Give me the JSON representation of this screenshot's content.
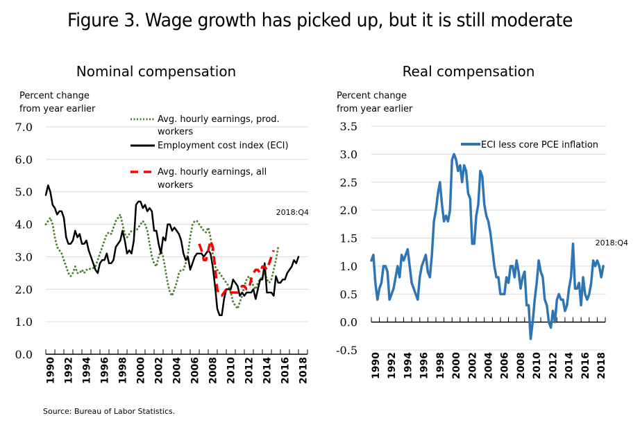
{
  "figure_title": "Figure 3. Wage growth has picked up, but it is still moderate",
  "source": "Source: Bureau of Labor Statistics.",
  "chart_data": [
    {
      "type": "line",
      "title": "Nominal compensation",
      "ylabel_lines": [
        "Percent change",
        "from year earlier"
      ],
      "xlabel": "",
      "xlim": [
        1990,
        2019
      ],
      "ylim": [
        0,
        7
      ],
      "y_ticks": [
        "0.0",
        "1.0",
        "2.0",
        "3.0",
        "4.0",
        "5.0",
        "6.0",
        "7.0"
      ],
      "y_tick_values": [
        0,
        1,
        2,
        3,
        4,
        5,
        6,
        7
      ],
      "x_ticks": [
        "1990",
        "1992",
        "1994",
        "1996",
        "1998",
        "2000",
        "2002",
        "2004",
        "2006",
        "2008",
        "2010",
        "2012",
        "2014",
        "2016",
        "2018"
      ],
      "grid": true,
      "legend_position": "top-center",
      "annotation": "2018:Q4",
      "series": [
        {
          "name": "Avg. hourly earnings, prod. workers",
          "legend_lines": [
            "Avg. hourly earnings, prod.",
            "workers"
          ],
          "style": "dotted",
          "color": "#548235",
          "x_start": 1990.0,
          "x_step": 0.25,
          "values": [
            4.0,
            4.1,
            4.2,
            4.0,
            3.6,
            3.3,
            3.2,
            3.1,
            2.9,
            2.7,
            2.5,
            2.4,
            2.5,
            2.7,
            2.5,
            2.5,
            2.6,
            2.5,
            2.6,
            2.6,
            2.65,
            2.65,
            2.7,
            2.9,
            3.1,
            3.3,
            3.5,
            3.7,
            3.75,
            3.7,
            3.9,
            4.1,
            4.2,
            4.3,
            4.0,
            3.7,
            3.6,
            3.7,
            3.8,
            3.8,
            3.8,
            3.9,
            4.0,
            4.1,
            4.0,
            3.8,
            3.4,
            3.0,
            2.8,
            2.7,
            3.0,
            3.2,
            3.0,
            2.6,
            2.2,
            1.9,
            1.8,
            2.0,
            2.2,
            2.5,
            2.6,
            2.6,
            2.8,
            3.1,
            3.6,
            4.0,
            4.1,
            4.1,
            4.0,
            3.9,
            3.8,
            3.75,
            3.9,
            3.6,
            3.1,
            2.7,
            2.6,
            2.5,
            2.4,
            2.3,
            2.2,
            2.1,
            1.9,
            1.6,
            1.5,
            1.4,
            1.6,
            1.8,
            2.1,
            2.3,
            2.4,
            2.3,
            2.1,
            2.0,
            2.2,
            2.3,
            2.4,
            2.5,
            2.3,
            2.2,
            2.3,
            2.6,
            2.9,
            3.3
          ]
        },
        {
          "name": "Employment cost index (ECI)",
          "legend_lines": [
            "Employment cost index (ECI)"
          ],
          "style": "solid",
          "color": "#000000",
          "x_start": 1990.0,
          "x_step": 0.25,
          "values": [
            4.9,
            5.2,
            5.0,
            4.6,
            4.5,
            4.3,
            4.4,
            4.4,
            4.2,
            3.6,
            3.4,
            3.4,
            3.5,
            3.8,
            3.6,
            3.7,
            3.4,
            3.4,
            3.5,
            3.2,
            3.0,
            2.8,
            2.6,
            2.5,
            2.8,
            2.9,
            2.9,
            3.1,
            2.8,
            2.8,
            2.9,
            3.3,
            3.4,
            3.5,
            3.8,
            3.5,
            3.1,
            3.2,
            3.1,
            3.5,
            4.6,
            4.7,
            4.7,
            4.5,
            4.6,
            4.4,
            4.5,
            4.4,
            3.8,
            3.8,
            3.4,
            3.1,
            3.6,
            3.5,
            4.0,
            4.0,
            3.8,
            3.9,
            3.8,
            3.7,
            3.5,
            3.1,
            2.9,
            3.0,
            2.6,
            2.8,
            3.0,
            3.1,
            3.1,
            3.1,
            3.0,
            3.1,
            3.2,
            3.1,
            2.7,
            2.1,
            1.4,
            1.2,
            1.2,
            1.7,
            2.0,
            2.0,
            2.0,
            2.3,
            2.2,
            2.1,
            1.8,
            1.9,
            1.8,
            1.9,
            1.9,
            1.9,
            2.0,
            1.7,
            2.0,
            2.3,
            2.3,
            2.8,
            1.9,
            1.9,
            1.9,
            1.8,
            2.4,
            2.2,
            2.2,
            2.3,
            2.3,
            2.5,
            2.6,
            2.7,
            2.9,
            2.8,
            3.0
          ]
        },
        {
          "name": "Avg. hourly earnings, all workers",
          "legend_lines": [
            "Avg. hourly earnings, all",
            "workers"
          ],
          "style": "dashed",
          "color": "#ff0000",
          "x_start": 2007.0,
          "x_step": 0.25,
          "values": [
            3.4,
            3.2,
            2.9,
            2.9,
            3.2,
            3.5,
            3.3,
            2.7,
            2.0,
            1.8,
            1.8,
            1.9,
            2.0,
            2.0,
            1.9,
            1.9,
            1.9,
            1.9,
            2.0,
            2.1,
            2.1,
            2.0,
            2.0,
            2.3,
            2.5,
            2.6,
            2.6,
            2.5,
            2.7,
            2.7,
            2.6,
            2.8,
            3.0,
            3.2
          ]
        }
      ]
    },
    {
      "type": "line",
      "title": "Real compensation",
      "ylabel_lines": [
        "Percent change",
        "from year earlier"
      ],
      "xlabel": "",
      "xlim": [
        1990,
        2019
      ],
      "ylim": [
        -0.5,
        3.5
      ],
      "y_ticks": [
        "-0.5",
        "0.0",
        "0.5",
        "1.0",
        "1.5",
        "2.0",
        "2.5",
        "3.0",
        "3.5"
      ],
      "y_tick_values": [
        -0.5,
        0,
        0.5,
        1.0,
        1.5,
        2.0,
        2.5,
        3.0,
        3.5
      ],
      "x_ticks": [
        "1990",
        "1992",
        "1994",
        "1996",
        "1998",
        "2000",
        "2002",
        "2004",
        "2006",
        "2008",
        "2010",
        "2012",
        "2014",
        "2016",
        "2018"
      ],
      "grid": true,
      "legend_position": "top-right",
      "annotation": "2018:Q4",
      "series": [
        {
          "name": "ECI less core PCE inflation",
          "legend_lines": [
            "ECI less core PCE inflation"
          ],
          "style": "solid",
          "color": "#2e75b6",
          "x_start": 1990.0,
          "x_step": 0.25,
          "values": [
            1.1,
            1.2,
            0.7,
            0.4,
            0.6,
            0.7,
            1.0,
            1.0,
            0.9,
            0.4,
            0.5,
            0.6,
            0.8,
            1.0,
            0.8,
            1.2,
            1.1,
            1.2,
            1.3,
            1.0,
            0.7,
            0.6,
            0.5,
            0.4,
            0.8,
            1.0,
            1.1,
            1.2,
            0.9,
            0.8,
            1.2,
            1.8,
            2.0,
            2.3,
            2.5,
            2.1,
            1.8,
            1.9,
            1.8,
            2.0,
            2.9,
            3.0,
            2.9,
            2.7,
            2.8,
            2.5,
            2.8,
            2.7,
            2.3,
            2.2,
            1.4,
            1.4,
            1.9,
            2.1,
            2.7,
            2.6,
            2.1,
            1.9,
            1.8,
            1.6,
            1.3,
            1.0,
            0.8,
            0.8,
            0.5,
            0.5,
            0.5,
            0.8,
            0.7,
            1.0,
            1.0,
            0.8,
            1.1,
            0.9,
            0.6,
            0.8,
            0.9,
            0.3,
            0.3,
            -0.3,
            0.0,
            0.4,
            0.7,
            1.1,
            0.9,
            0.8,
            0.4,
            0.3,
            0.0,
            -0.1,
            0.2,
            0.0,
            0.4,
            0.5,
            0.4,
            0.4,
            0.2,
            0.3,
            0.6,
            0.8,
            1.4,
            0.6,
            0.6,
            0.7,
            0.3,
            0.8,
            0.5,
            0.4,
            0.5,
            0.7,
            1.1,
            1.0,
            1.1,
            1.0,
            0.8,
            1.0
          ]
        }
      ]
    }
  ]
}
